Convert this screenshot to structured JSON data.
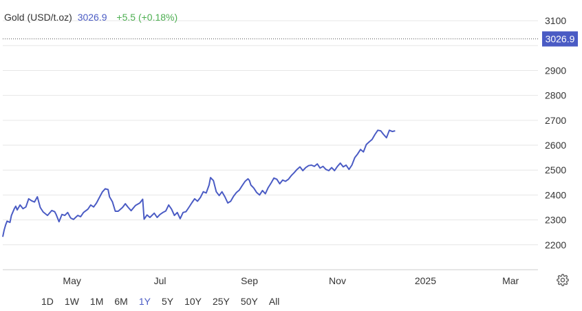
{
  "header": {
    "title": "Gold (USD/t.oz)",
    "price": "3026.9",
    "change": "+5.5 (+0.18%)",
    "change_color": "#4caf50"
  },
  "last_price_label": "3026.9",
  "range_buttons": [
    "1D",
    "1W",
    "1M",
    "6M",
    "1Y",
    "5Y",
    "10Y",
    "25Y",
    "50Y",
    "All"
  ],
  "active_range": "1Y",
  "settings_icon": "gear-icon",
  "chart_data": {
    "type": "line",
    "title": "",
    "xlabel": "",
    "ylabel": "",
    "ylim": [
      2100,
      3150
    ],
    "yticks": [
      2200,
      2300,
      2400,
      2500,
      2600,
      2700,
      2800,
      2900,
      3000,
      3100
    ],
    "ytick_labels": [
      "2200",
      "2300",
      "2400",
      "2500",
      "2600",
      "2700",
      "2800",
      "2900",
      "",
      "3100"
    ],
    "x_start": "2024-03-14",
    "x_end": "2025-03-20",
    "xticks": [
      {
        "date": "2024-05-01",
        "label": "May"
      },
      {
        "date": "2024-07-01",
        "label": "Jul"
      },
      {
        "date": "2024-09-01",
        "label": "Sep"
      },
      {
        "date": "2024-11-01",
        "label": "Nov"
      },
      {
        "date": "2025-01-01",
        "label": "2025"
      },
      {
        "date": "2025-03-01",
        "label": "Mar"
      }
    ],
    "grid": true,
    "line_color": "#4a5bc4",
    "last_value": 3026.9,
    "series": [
      {
        "name": "",
        "points": [
          [
            "2024-03-14",
            2232
          ],
          [
            "2024-03-15",
            2260
          ],
          [
            "2024-03-16",
            2280
          ],
          [
            "2024-03-17",
            2295
          ],
          [
            "2024-03-19",
            2290
          ],
          [
            "2024-03-20",
            2318
          ],
          [
            "2024-03-22",
            2345
          ],
          [
            "2024-03-23",
            2355
          ],
          [
            "2024-03-24",
            2340
          ],
          [
            "2024-03-26",
            2360
          ],
          [
            "2024-03-28",
            2345
          ],
          [
            "2024-03-30",
            2352
          ],
          [
            "2024-04-01",
            2385
          ],
          [
            "2024-04-03",
            2377
          ],
          [
            "2024-04-05",
            2372
          ],
          [
            "2024-04-07",
            2393
          ],
          [
            "2024-04-09",
            2350
          ],
          [
            "2024-04-11",
            2332
          ],
          [
            "2024-04-14",
            2318
          ],
          [
            "2024-04-17",
            2338
          ],
          [
            "2024-04-19",
            2333
          ],
          [
            "2024-04-20",
            2322
          ],
          [
            "2024-04-22",
            2293
          ],
          [
            "2024-04-24",
            2322
          ],
          [
            "2024-04-26",
            2318
          ],
          [
            "2024-04-28",
            2330
          ],
          [
            "2024-04-30",
            2308
          ],
          [
            "2024-05-02",
            2302
          ],
          [
            "2024-05-05",
            2318
          ],
          [
            "2024-05-07",
            2313
          ],
          [
            "2024-05-09",
            2330
          ],
          [
            "2024-05-12",
            2343
          ],
          [
            "2024-05-14",
            2360
          ],
          [
            "2024-05-16",
            2352
          ],
          [
            "2024-05-18",
            2368
          ],
          [
            "2024-05-20",
            2390
          ],
          [
            "2024-05-22",
            2412
          ],
          [
            "2024-05-24",
            2425
          ],
          [
            "2024-05-26",
            2422
          ],
          [
            "2024-05-27",
            2393
          ],
          [
            "2024-05-29",
            2373
          ],
          [
            "2024-05-31",
            2335
          ],
          [
            "2024-06-02",
            2335
          ],
          [
            "2024-06-05",
            2350
          ],
          [
            "2024-06-07",
            2365
          ],
          [
            "2024-06-09",
            2350
          ],
          [
            "2024-06-11",
            2337
          ],
          [
            "2024-06-14",
            2358
          ],
          [
            "2024-06-17",
            2368
          ],
          [
            "2024-06-19",
            2383
          ],
          [
            "2024-06-20",
            2303
          ],
          [
            "2024-06-22",
            2320
          ],
          [
            "2024-06-24",
            2310
          ],
          [
            "2024-06-27",
            2327
          ],
          [
            "2024-06-29",
            2310
          ],
          [
            "2024-07-01",
            2322
          ],
          [
            "2024-07-03",
            2330
          ],
          [
            "2024-07-05",
            2336
          ],
          [
            "2024-07-07",
            2360
          ],
          [
            "2024-07-09",
            2343
          ],
          [
            "2024-07-11",
            2318
          ],
          [
            "2024-07-13",
            2330
          ],
          [
            "2024-07-15",
            2305
          ],
          [
            "2024-07-17",
            2330
          ],
          [
            "2024-07-19",
            2333
          ],
          [
            "2024-07-21",
            2350
          ],
          [
            "2024-07-23",
            2368
          ],
          [
            "2024-07-25",
            2385
          ],
          [
            "2024-07-27",
            2375
          ],
          [
            "2024-07-29",
            2390
          ],
          [
            "2024-07-31",
            2413
          ],
          [
            "2024-08-02",
            2408
          ],
          [
            "2024-08-04",
            2440
          ],
          [
            "2024-08-05",
            2470
          ],
          [
            "2024-08-07",
            2458
          ],
          [
            "2024-08-09",
            2413
          ],
          [
            "2024-08-11",
            2398
          ],
          [
            "2024-08-13",
            2413
          ],
          [
            "2024-08-15",
            2393
          ],
          [
            "2024-08-17",
            2368
          ],
          [
            "2024-08-19",
            2375
          ],
          [
            "2024-08-21",
            2395
          ],
          [
            "2024-08-23",
            2410
          ],
          [
            "2024-08-25",
            2420
          ],
          [
            "2024-08-27",
            2438
          ],
          [
            "2024-08-29",
            2455
          ],
          [
            "2024-08-31",
            2465
          ],
          [
            "2024-09-01",
            2458
          ],
          [
            "2024-09-02",
            2440
          ],
          [
            "2024-09-04",
            2428
          ],
          [
            "2024-09-06",
            2410
          ],
          [
            "2024-09-08",
            2400
          ],
          [
            "2024-09-10",
            2418
          ],
          [
            "2024-09-12",
            2405
          ],
          [
            "2024-09-14",
            2430
          ],
          [
            "2024-09-16",
            2448
          ],
          [
            "2024-09-18",
            2468
          ],
          [
            "2024-09-20",
            2463
          ],
          [
            "2024-09-22",
            2445
          ],
          [
            "2024-09-24",
            2460
          ],
          [
            "2024-09-26",
            2455
          ],
          [
            "2024-09-28",
            2463
          ],
          [
            "2024-09-30",
            2478
          ],
          [
            "2024-10-02",
            2490
          ],
          [
            "2024-10-04",
            2503
          ],
          [
            "2024-10-06",
            2513
          ],
          [
            "2024-10-08",
            2498
          ],
          [
            "2024-10-10",
            2510
          ],
          [
            "2024-10-12",
            2518
          ],
          [
            "2024-10-14",
            2520
          ],
          [
            "2024-10-16",
            2515
          ],
          [
            "2024-10-18",
            2525
          ],
          [
            "2024-10-20",
            2508
          ],
          [
            "2024-10-22",
            2515
          ],
          [
            "2024-10-24",
            2503
          ],
          [
            "2024-10-26",
            2498
          ],
          [
            "2024-10-28",
            2510
          ],
          [
            "2024-10-30",
            2498
          ],
          [
            "2024-11-01",
            2515
          ],
          [
            "2024-11-03",
            2528
          ],
          [
            "2024-11-05",
            2513
          ],
          [
            "2024-11-07",
            2520
          ],
          [
            "2024-11-09",
            2503
          ],
          [
            "2024-11-11",
            2520
          ],
          [
            "2024-11-13",
            2550
          ],
          [
            "2024-11-15",
            2565
          ],
          [
            "2024-11-17",
            2583
          ],
          [
            "2024-11-19",
            2573
          ],
          [
            "2024-11-21",
            2603
          ],
          [
            "2024-11-23",
            2613
          ],
          [
            "2024-11-25",
            2623
          ],
          [
            "2024-11-27",
            2643
          ],
          [
            "2024-11-29",
            2660
          ],
          [
            "2024-12-01",
            2658
          ],
          [
            "2024-12-03",
            2643
          ],
          [
            "2024-12-05",
            2630
          ],
          [
            "2024-12-07",
            2660
          ],
          [
            "2024-12-09",
            2655
          ],
          [
            "2024-12-11",
            2658
          ]
        ]
      }
    ]
  }
}
